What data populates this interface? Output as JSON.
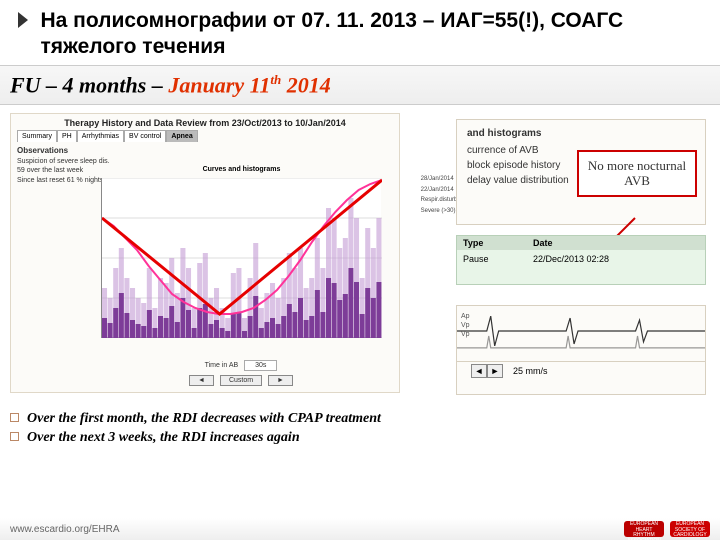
{
  "header": {
    "text": "На полисомнографии от 07. 11. 2013 – ИАГ=55(!), СОАГС тяжелого течения"
  },
  "banner": {
    "prefix": "FU – 4 months – ",
    "red": "January 11",
    "sup": "th",
    "tail": " 2014"
  },
  "chart": {
    "title": "Therapy History and Data Review from 23/Oct/2013 to 10/Jan/2014",
    "plot_title": "Curves and histograms",
    "tabs": [
      "Summary",
      "PH",
      "Arrhythmias",
      "BV control",
      "Apnea"
    ],
    "obs_title": "Observations",
    "obs_lines": [
      "Suspicion of severe sleep dis.",
      "59 over the last week",
      "Since last reset 61 % nights"
    ],
    "bars_light": [
      50,
      40,
      70,
      90,
      60,
      50,
      40,
      35,
      70,
      30,
      60,
      55,
      80,
      45,
      90,
      70,
      30,
      75,
      85,
      40,
      50,
      30,
      20,
      65,
      70,
      20,
      60,
      95,
      30,
      45,
      55,
      40,
      60,
      85,
      70,
      90,
      50,
      60,
      100,
      70,
      130,
      120,
      90,
      100,
      140,
      120,
      60,
      110,
      90,
      120
    ],
    "bars_dark": [
      20,
      15,
      30,
      45,
      25,
      18,
      14,
      12,
      28,
      10,
      22,
      20,
      32,
      16,
      40,
      28,
      10,
      30,
      34,
      14,
      18,
      10,
      7,
      24,
      26,
      7,
      22,
      42,
      10,
      16,
      20,
      14,
      22,
      34,
      26,
      40,
      18,
      22,
      48,
      26,
      60,
      55,
      38,
      44,
      70,
      56,
      24,
      50,
      40,
      56
    ],
    "pink": [
      120,
      112,
      100,
      88,
      72,
      58,
      44,
      36,
      30,
      26,
      24,
      24,
      26,
      30,
      38,
      48,
      62,
      78,
      96,
      112,
      126,
      138,
      148,
      154,
      158
    ],
    "y_ticks": [
      0,
      40,
      80,
      120,
      160
    ],
    "ylim": 160,
    "legend": [
      "28/Jan/2014",
      "22/Jan/2014",
      "",
      "Respir.disturb.",
      "Severe (>30)"
    ],
    "time_label": "Time in AB",
    "time_val": "30s",
    "btn_back": "◄",
    "btn_c": "Custom",
    "btn_fwd": "►"
  },
  "right1": {
    "header": "and histograms",
    "items": [
      "currence of AVB",
      "block episode history",
      "delay value distribution"
    ],
    "callout": "No more nocturnal AVB"
  },
  "right2": {
    "h1": "Type",
    "h2": "Date",
    "c1": "Pause",
    "c2": "22/Dec/2013 02:28"
  },
  "ecg": {
    "labels": [
      "Ap",
      "Vp",
      "Vp"
    ],
    "speed": "25 mm/s"
  },
  "bullets": {
    "l1": "Over the first month, the RDI decreases with CPAP treatment",
    "l2": "Over the next 3 weeks, the RDI increases again"
  },
  "watermark": "Heart Rhythm",
  "footer": {
    "url": "www.escardio.org/EHRA",
    "logo1": "EUROPEAN HEART RHYTHM ASSOCIATION",
    "logo2": "EUROPEAN SOCIETY OF CARDIOLOGY"
  }
}
